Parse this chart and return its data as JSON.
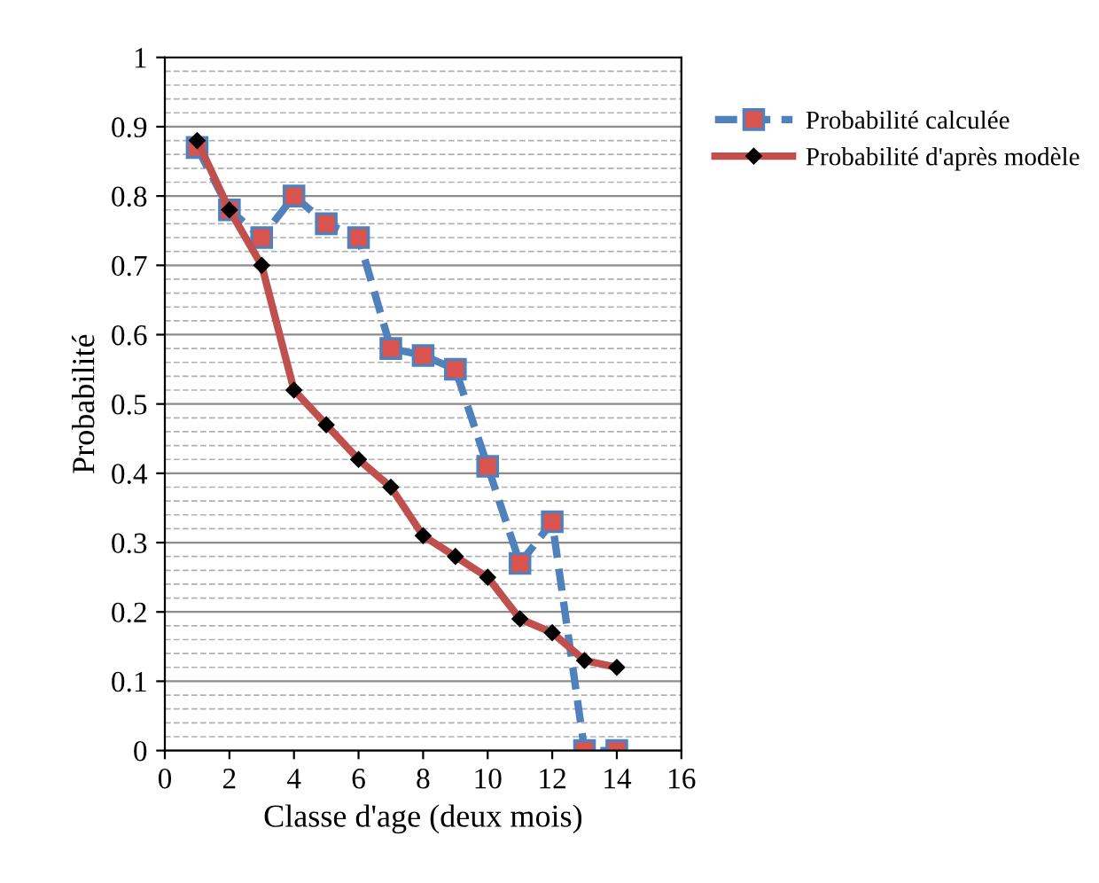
{
  "chart_data": {
    "type": "line",
    "xlabel": "Classe d'age (deux mois)",
    "ylabel": "Probabilité",
    "x": [
      1,
      2,
      3,
      4,
      5,
      6,
      7,
      8,
      9,
      10,
      11,
      12,
      13,
      14
    ],
    "series": [
      {
        "name": "Probabilité calculée",
        "color": "#4f81bd",
        "marker": "square",
        "line_style": "dashed",
        "values": [
          0.87,
          0.78,
          0.74,
          0.8,
          0.76,
          0.74,
          0.58,
          0.57,
          0.55,
          0.41,
          0.27,
          0.33,
          0,
          0
        ]
      },
      {
        "name": "Probabilité d'après modèle",
        "color": "#c0504d",
        "marker": "diamond",
        "line_style": "solid",
        "values": [
          0.88,
          0.78,
          0.7,
          0.52,
          0.47,
          0.42,
          0.38,
          0.31,
          0.28,
          0.25,
          0.19,
          0.17,
          0.13,
          0.12
        ]
      }
    ],
    "xlim": [
      0,
      16
    ],
    "xticks": [
      0,
      2,
      4,
      6,
      8,
      10,
      12,
      14,
      16
    ],
    "ylim": [
      0,
      1
    ],
    "yticks": [
      0,
      0.1,
      0.2,
      0.3,
      0.4,
      0.5,
      0.6,
      0.7,
      0.8,
      0.9,
      1
    ],
    "grid": "y",
    "legend": "right"
  }
}
